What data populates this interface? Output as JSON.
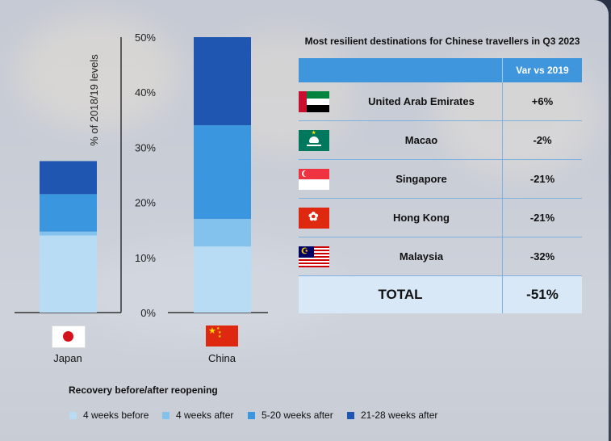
{
  "chart_data": {
    "type": "bar",
    "stacked": true,
    "categories": [
      "Japan",
      "China"
    ],
    "ylabel": "% of 2018/19 levels",
    "ylim": [
      0,
      50
    ],
    "yticks": [
      "0%",
      "10%",
      "20%",
      "30%",
      "40%",
      "50%"
    ],
    "series": [
      {
        "name": "4 weeks before",
        "values": [
          14,
          12
        ],
        "color": "#b9dcf5"
      },
      {
        "name": "4 weeks after",
        "values": [
          0.7,
          5
        ],
        "color": "#84c2ee"
      },
      {
        "name": "5-20 weeks after",
        "values": [
          6.8,
          17
        ],
        "color": "#3a97df"
      },
      {
        "name": "21-28 weeks after",
        "values": [
          6,
          16
        ],
        "color": "#1f56b2"
      }
    ],
    "flags": [
      "japan-flag",
      "china-flag"
    ]
  },
  "table": {
    "title": "Most resilient destinations for Chinese travellers in Q3 2023",
    "header": "Var vs 2019",
    "rows": [
      {
        "name": "United Arab Emirates",
        "value": "+6%",
        "flag": "uae-flag"
      },
      {
        "name": "Macao",
        "value": "-2%",
        "flag": "macao-flag"
      },
      {
        "name": "Singapore",
        "value": "-21%",
        "flag": "singapore-flag"
      },
      {
        "name": "Hong Kong",
        "value": "-21%",
        "flag": "hong-kong-flag"
      },
      {
        "name": "Malaysia",
        "value": "-32%",
        "flag": "malaysia-flag"
      }
    ],
    "total_label": "TOTAL",
    "total_value": "-51%"
  },
  "legend": {
    "title": "Recovery before/after reopening"
  },
  "colors": {
    "header_blue": "#3f96dc",
    "row_line": "#7fb2de",
    "total_bg": "#d9e8f6"
  }
}
